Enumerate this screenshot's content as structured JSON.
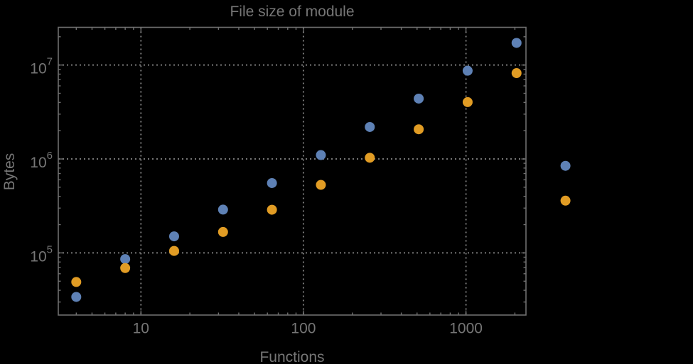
{
  "window": {
    "background": "#000000"
  },
  "chart_data": {
    "type": "scatter",
    "title": "File size of module",
    "xlabel": "Functions",
    "ylabel": "Bytes",
    "xscale": "log",
    "yscale": "log",
    "grid": true,
    "legend": "none",
    "xlim": [
      3.1,
      2340
    ],
    "ylim": [
      21800,
      25200000
    ],
    "x_ticks": [
      {
        "value": 10,
        "label": "10"
      },
      {
        "value": 100,
        "label": "100"
      },
      {
        "value": 1000,
        "label": "1000"
      }
    ],
    "y_ticks": [
      {
        "value": 100000,
        "mantissa": "10",
        "exponent": "5"
      },
      {
        "value": 1000000,
        "mantissa": "10",
        "exponent": "6"
      },
      {
        "value": 10000000,
        "mantissa": "10",
        "exponent": "7"
      }
    ],
    "x": [
      4,
      8,
      16,
      32,
      64,
      128,
      256,
      512,
      1024,
      2048,
      4096
    ],
    "series": [
      {
        "name": "series-1-blue",
        "color": "#5E81B5",
        "values": [
          34000,
          86000,
          150000,
          289000,
          554000,
          1100000,
          2190000,
          4390000,
          8700000,
          17200000,
          845000
        ]
      },
      {
        "name": "series-2-orange",
        "color": "#E19C24",
        "values": [
          49000,
          69000,
          105000,
          167000,
          288000,
          530000,
          1030000,
          2070000,
          4030000,
          8200000,
          360000
        ]
      }
    ],
    "styles": {
      "frame_color": "#6f6f6f",
      "grid_color": "#787878",
      "text_color": "#767676",
      "point_radius": 7
    }
  }
}
